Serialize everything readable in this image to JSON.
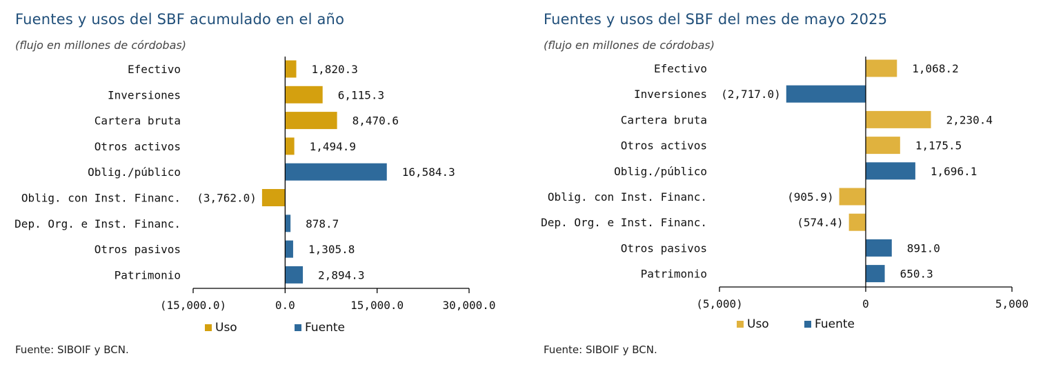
{
  "colors": {
    "uso_left": "#d4a00f",
    "uso_right": "#e0b23e",
    "fuente": "#2e6a9b"
  },
  "chart_data": [
    {
      "type": "bar",
      "orientation": "horizontal",
      "title": "Fuentes y usos del SBF acumulado en el año",
      "subtitle": "(flujo en millones de córdobas)",
      "source": "Fuente: SIBOIF y BCN.",
      "categories": [
        "Efectivo",
        "Inversiones",
        "Cartera bruta",
        "Otros activos",
        "Oblig./público",
        "Oblig. con Inst. Financ.",
        "Dep. Org. e Inst. Financ.",
        "Otros pasivos",
        "Patrimonio"
      ],
      "values": [
        1820.3,
        6115.3,
        8470.6,
        1494.9,
        16584.3,
        -3762.0,
        878.7,
        1305.8,
        2894.3
      ],
      "value_labels": [
        "1,820.3",
        "6,115.3",
        "8,470.6",
        "1,494.9",
        "16,584.3",
        "(3,762.0)",
        "878.7",
        "1,305.8",
        "2,894.3"
      ],
      "series_type": [
        "Uso",
        "Uso",
        "Uso",
        "Uso",
        "Fuente",
        "Uso",
        "Fuente",
        "Fuente",
        "Fuente"
      ],
      "xlim": [
        -15000,
        30000
      ],
      "xticks": [
        -15000,
        0,
        15000,
        30000
      ],
      "xtick_labels": [
        "(15,000.0)",
        "0.0",
        "15,000.0",
        "30,000.0"
      ],
      "legend": [
        "Uso",
        "Fuente"
      ],
      "legend_position": "bottom",
      "grid": false
    },
    {
      "type": "bar",
      "orientation": "horizontal",
      "title": "Fuentes y usos del SBF del mes de mayo 2025",
      "subtitle": "(flujo en millones de córdobas)",
      "source": "Fuente: SIBOIF y BCN.",
      "categories": [
        "Efectivo",
        "Inversiones",
        "Cartera bruta",
        "Otros activos",
        "Oblig./público",
        "Oblig. con Inst. Financ.",
        "Dep. Org. e Inst. Financ.",
        "Otros pasivos",
        "Patrimonio"
      ],
      "values": [
        1068.2,
        -2717.0,
        2230.4,
        1175.5,
        1696.1,
        -905.9,
        -574.4,
        891.0,
        650.3
      ],
      "value_labels": [
        "1,068.2",
        "(2,717.0)",
        "2,230.4",
        "1,175.5",
        "1,696.1",
        "(905.9)",
        "(574.4)",
        "891.0",
        "650.3"
      ],
      "series_type": [
        "Uso",
        "Fuente",
        "Uso",
        "Uso",
        "Fuente",
        "Uso",
        "Uso",
        "Fuente",
        "Fuente"
      ],
      "xlim": [
        -5000,
        5000
      ],
      "xticks": [
        -5000,
        0,
        5000
      ],
      "xtick_labels": [
        "(5,000)",
        "0",
        "5,000"
      ],
      "legend": [
        "Uso",
        "Fuente"
      ],
      "legend_position": "bottom",
      "grid": false
    }
  ]
}
